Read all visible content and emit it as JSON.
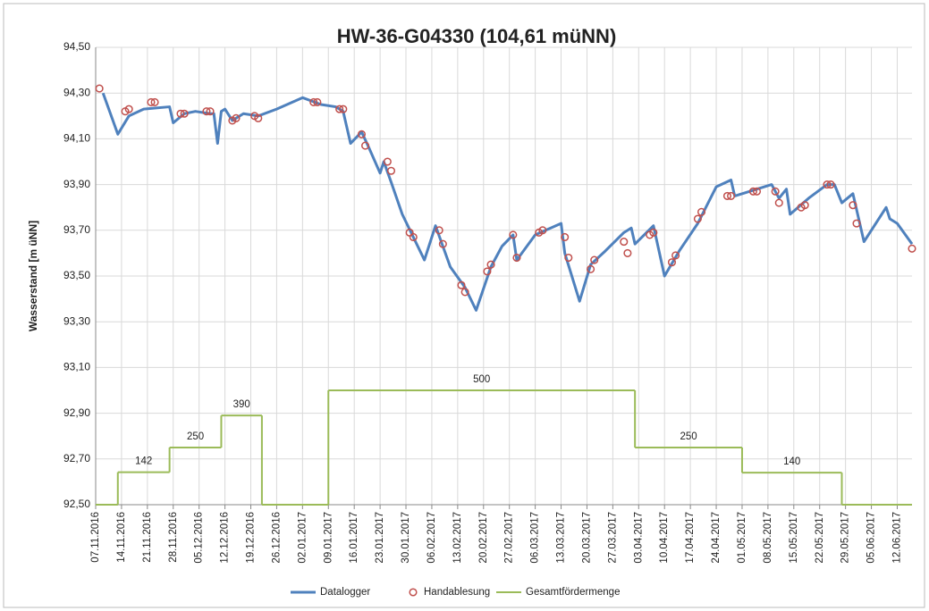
{
  "chart_data": {
    "type": "line",
    "title": "HW-36-G04330 (104,61 müNN)",
    "y_label": "Wasserstand [m üNN]",
    "xlim": [
      "07.11.2016",
      "16.06.2017"
    ],
    "xticks": [
      "07.11.2016",
      "14.11.2016",
      "21.11.2016",
      "28.11.2016",
      "05.12.2016",
      "12.12.2016",
      "19.12.2016",
      "26.12.2016",
      "02.01.2017",
      "09.01.2017",
      "16.01.2017",
      "23.01.2017",
      "30.01.2017",
      "06.02.2017",
      "13.02.2017",
      "20.02.2017",
      "27.02.2017",
      "06.03.2017",
      "13.03.2017",
      "20.03.2017",
      "27.03.2017",
      "03.04.2017",
      "10.04.2017",
      "17.04.2017",
      "24.04.2017",
      "01.05.2017",
      "08.05.2017",
      "15.05.2017",
      "22.05.2017",
      "29.05.2017",
      "05.06.2017",
      "12.06.2017"
    ],
    "ylim": [
      92.5,
      94.5
    ],
    "yticks": [
      {
        "value": 92.5,
        "label": "92,50"
      },
      {
        "value": 92.7,
        "label": "92,70"
      },
      {
        "value": 92.9,
        "label": "92,90"
      },
      {
        "value": 93.1,
        "label": "93,10"
      },
      {
        "value": 93.3,
        "label": "93,30"
      },
      {
        "value": 93.5,
        "label": "93,50"
      },
      {
        "value": 93.7,
        "label": "93,70"
      },
      {
        "value": 93.9,
        "label": "93,90"
      },
      {
        "value": 94.1,
        "label": "94,10"
      },
      {
        "value": 94.3,
        "label": "94,30"
      },
      {
        "value": 94.5,
        "label": "94,50"
      }
    ],
    "y2lim": [
      0,
      2000
    ],
    "grid": true,
    "series": [
      {
        "name": "Datalogger",
        "color": "#4f81bd",
        "style": "line",
        "x": [
          "09.11.2016",
          "13.11.2016",
          "16.11.2016",
          "20.11.2016",
          "27.11.2016",
          "28.11.2016",
          "01.12.2016",
          "04.12.2016",
          "08.12.2016",
          "09.12.2016",
          "10.12.2016",
          "11.12.2016",
          "12.12.2016",
          "14.12.2016",
          "17.12.2016",
          "21.12.2016",
          "26.12.2016",
          "02.01.2017",
          "07.01.2017",
          "11.01.2017",
          "13.01.2017",
          "15.01.2017",
          "18.01.2017",
          "20.01.2017",
          "23.01.2017",
          "24.01.2017",
          "26.01.2017",
          "29.01.2017",
          "01.02.2017",
          "04.02.2017",
          "07.02.2017",
          "09.02.2017",
          "11.02.2017",
          "15.02.2017",
          "18.02.2017",
          "22.02.2017",
          "25.02.2017",
          "28.02.2017",
          "01.03.2017",
          "06.03.2017",
          "13.03.2017",
          "14.03.2017",
          "18.03.2017",
          "21.03.2017",
          "25.03.2017",
          "30.03.2017",
          "01.04.2017",
          "02.04.2017",
          "07.04.2017",
          "10.04.2017",
          "14.04.2017",
          "19.04.2017",
          "24.04.2017",
          "28.04.2017",
          "29.04.2017",
          "03.05.2017",
          "09.05.2017",
          "11.05.2017",
          "13.05.2017",
          "14.05.2017",
          "19.05.2017",
          "24.05.2017",
          "26.05.2017",
          "28.05.2017",
          "31.05.2017",
          "03.06.2017",
          "09.06.2017",
          "10.06.2017",
          "12.06.2017",
          "16.06.2017"
        ],
        "values": [
          94.3,
          94.12,
          94.2,
          94.23,
          94.24,
          94.17,
          94.21,
          94.22,
          94.21,
          94.21,
          94.08,
          94.22,
          94.23,
          94.18,
          94.21,
          94.2,
          94.23,
          94.28,
          94.25,
          94.24,
          94.22,
          94.08,
          94.13,
          94.06,
          93.95,
          94.0,
          93.91,
          93.77,
          93.67,
          93.57,
          93.72,
          93.63,
          93.54,
          93.45,
          93.35,
          93.54,
          93.63,
          93.68,
          93.57,
          93.68,
          93.73,
          93.6,
          93.39,
          93.55,
          93.61,
          93.69,
          93.71,
          93.64,
          93.72,
          93.5,
          93.61,
          93.73,
          93.89,
          93.92,
          93.85,
          93.87,
          93.9,
          93.84,
          93.88,
          93.77,
          93.84,
          93.9,
          93.9,
          93.82,
          93.86,
          93.65,
          93.8,
          93.75,
          93.73,
          93.64
        ]
      },
      {
        "name": "Handablesung",
        "color": "#c0504d",
        "style": "markers",
        "x": [
          "08.11.2016",
          "15.11.2016",
          "16.11.2016",
          "22.11.2016",
          "23.11.2016",
          "30.11.2016",
          "01.12.2016",
          "07.12.2016",
          "08.12.2016",
          "14.12.2016",
          "15.12.2016",
          "20.12.2016",
          "21.12.2016",
          "05.01.2017",
          "06.01.2017",
          "12.01.2017",
          "13.01.2017",
          "18.01.2017",
          "19.01.2017",
          "25.01.2017",
          "26.01.2017",
          "31.01.2017",
          "01.02.2017",
          "08.02.2017",
          "09.02.2017",
          "14.02.2017",
          "15.02.2017",
          "21.02.2017",
          "22.02.2017",
          "28.02.2017",
          "01.03.2017",
          "07.03.2017",
          "08.03.2017",
          "14.03.2017",
          "15.03.2017",
          "21.03.2017",
          "22.03.2017",
          "30.03.2017",
          "31.03.2017",
          "06.04.2017",
          "07.04.2017",
          "12.04.2017",
          "13.04.2017",
          "19.04.2017",
          "20.04.2017",
          "27.04.2017",
          "28.04.2017",
          "04.05.2017",
          "05.05.2017",
          "10.05.2017",
          "11.05.2017",
          "17.05.2017",
          "18.05.2017",
          "24.05.2017",
          "25.05.2017",
          "31.05.2017",
          "01.06.2017",
          "16.06.2017"
        ],
        "values": [
          94.32,
          94.22,
          94.23,
          94.26,
          94.26,
          94.21,
          94.21,
          94.22,
          94.22,
          94.18,
          94.19,
          94.2,
          94.19,
          94.26,
          94.26,
          94.23,
          94.23,
          94.12,
          94.07,
          94.0,
          93.96,
          93.69,
          93.67,
          93.7,
          93.64,
          93.46,
          93.43,
          93.52,
          93.55,
          93.68,
          93.58,
          93.69,
          93.7,
          93.67,
          93.58,
          93.53,
          93.57,
          93.65,
          93.6,
          93.68,
          93.69,
          93.56,
          93.59,
          93.75,
          93.78,
          93.85,
          93.85,
          93.87,
          93.87,
          93.87,
          93.82,
          93.8,
          93.81,
          93.9,
          93.9,
          93.81,
          93.73,
          93.62
        ]
      },
      {
        "name": "Gesamtfördermenge",
        "color": "#9bbb59",
        "style": "step",
        "axis": "y2",
        "x": [
          "07.11.2016",
          "13.11.2016",
          "27.11.2016",
          "11.12.2016",
          "22.12.2016",
          "09.01.2017",
          "02.04.2017",
          "01.05.2017",
          "28.05.2017",
          "16.06.2017"
        ],
        "values": [
          0,
          142,
          250,
          390,
          0,
          500,
          250,
          140,
          0,
          0
        ],
        "value_labels": [
          null,
          "142",
          "250",
          "390",
          null,
          "500",
          "250",
          "140",
          null,
          null
        ]
      }
    ]
  }
}
